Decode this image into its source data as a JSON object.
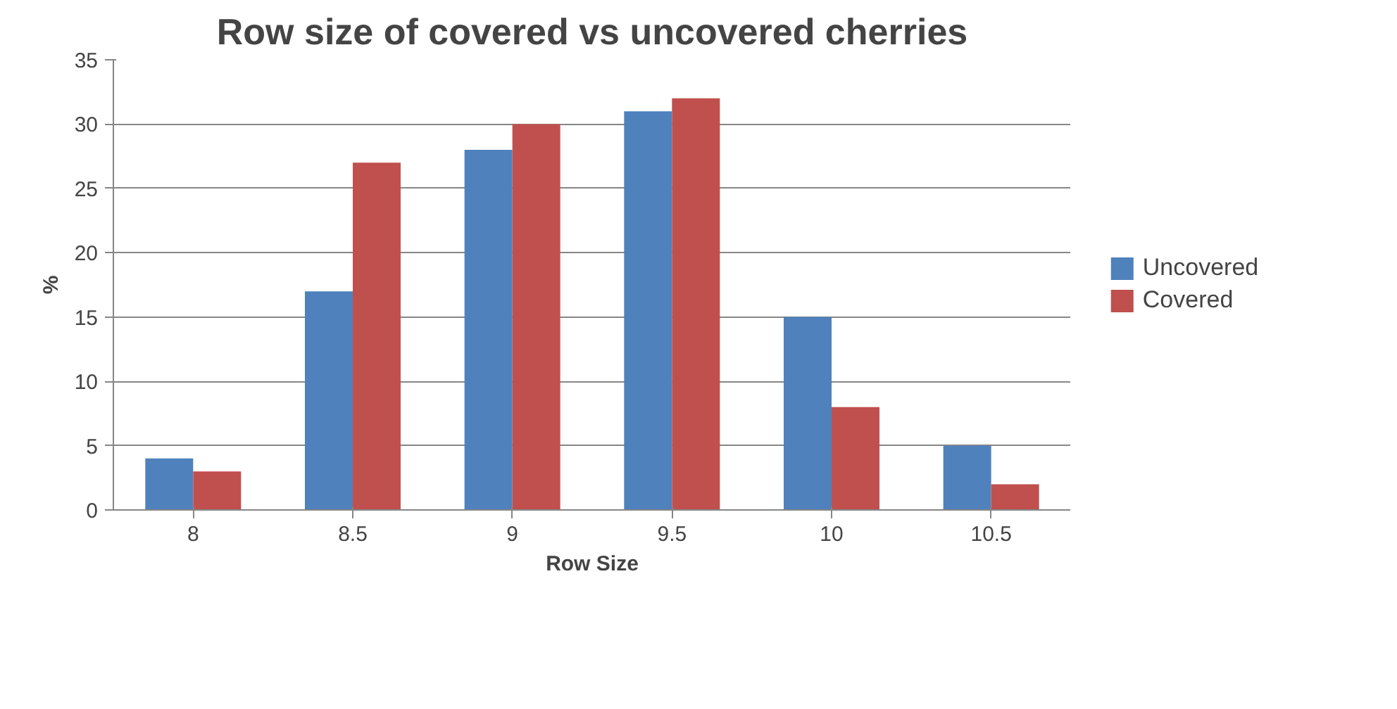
{
  "chart_data": {
    "type": "bar",
    "title": "Row size of covered vs uncovered cherries",
    "xlabel": "Row Size",
    "ylabel": "%",
    "categories": [
      "8",
      "8.5",
      "9",
      "9.5",
      "10",
      "10.5"
    ],
    "series": [
      {
        "name": "Uncovered",
        "color": "#4f81bd",
        "values": [
          4,
          17,
          28,
          31,
          15,
          5
        ]
      },
      {
        "name": "Covered",
        "color": "#c0504d",
        "values": [
          3,
          27,
          30,
          32,
          8,
          2
        ]
      }
    ],
    "ylim": [
      0,
      35
    ],
    "yticks": [
      0,
      5,
      10,
      15,
      20,
      25,
      30,
      35
    ],
    "grid": "y",
    "legend": "right"
  }
}
